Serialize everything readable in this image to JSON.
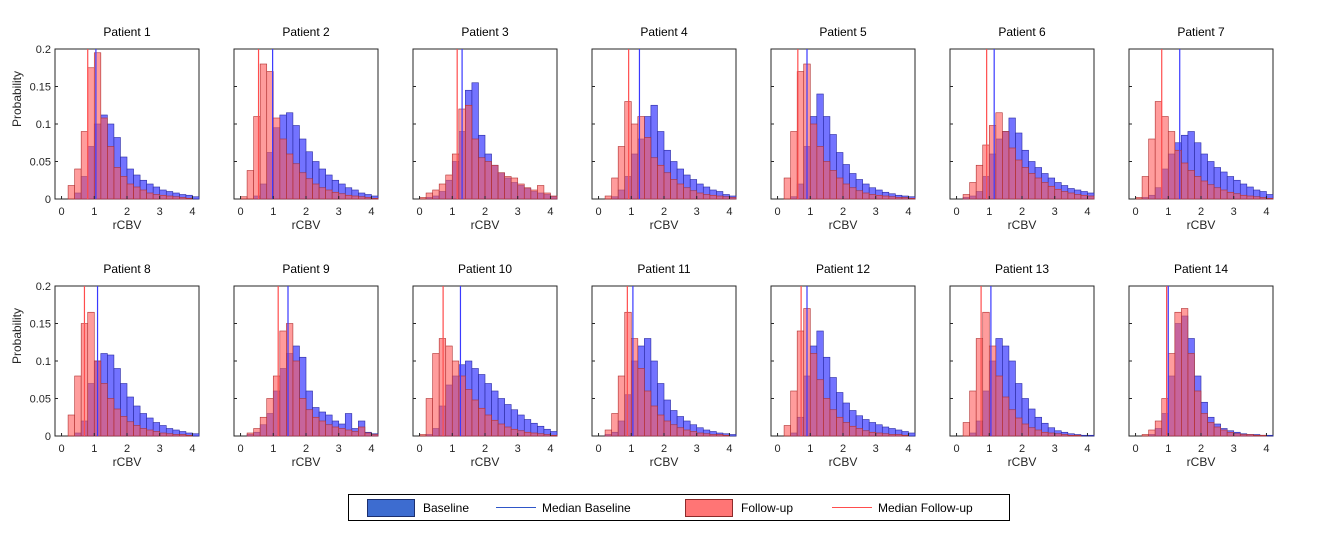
{
  "chart_data": {
    "type": "bar",
    "description": "Grid of 14 overlaid histograms of rCBV (baseline vs follow-up), one per patient",
    "xlabel": "rCBV",
    "ylabel": "Probability",
    "xlim": [
      -0.2,
      4.2
    ],
    "ylim": [
      0,
      0.2
    ],
    "xticks": [
      0,
      1,
      2,
      3,
      4
    ],
    "yticks": [
      0,
      0.05,
      0.1,
      0.15,
      0.2
    ],
    "ytick_labels": [
      "0",
      "0.05",
      "0.1",
      "0.15",
      "0.2"
    ],
    "bin_start": 0.0,
    "bin_width": 0.2,
    "colors": {
      "baseline_fill": "#5a5aff",
      "baseline_edge": "#2a2aa0",
      "baseline_median": "#3a3aff",
      "followup_fill": "#ff5a5a",
      "followup_edge": "#b03030",
      "followup_median": "#ff4d4d",
      "overlap_fill": "#c0245e"
    },
    "legend": [
      {
        "label": "Baseline",
        "kind": "patch",
        "color": "#3d6cd0"
      },
      {
        "label": "Median Baseline",
        "kind": "line",
        "color": "#2f56c8"
      },
      {
        "label": "Follow-up",
        "kind": "patch",
        "color": "#ff7575"
      },
      {
        "label": "Median Follow-up",
        "kind": "line",
        "color": "#ff4d4d"
      }
    ],
    "panels": [
      {
        "title": "Patient 1",
        "median_baseline": 1.05,
        "median_followup": 0.8,
        "baseline": [
          0.0,
          0.0,
          0.008,
          0.03,
          0.07,
          0.1,
          0.112,
          0.1,
          0.082,
          0.056,
          0.04,
          0.032,
          0.025,
          0.02,
          0.016,
          0.012,
          0.01,
          0.008,
          0.006,
          0.005,
          0.003
        ],
        "followup": [
          0.0,
          0.018,
          0.04,
          0.09,
          0.175,
          0.195,
          0.108,
          0.07,
          0.042,
          0.03,
          0.02,
          0.016,
          0.012,
          0.008,
          0.006,
          0.005,
          0.004,
          0.003,
          0.002,
          0.001,
          0.0
        ]
      },
      {
        "title": "Patient 2",
        "median_baseline": 0.98,
        "median_followup": 0.55,
        "baseline": [
          0.0,
          0.0,
          0.004,
          0.02,
          0.062,
          0.095,
          0.112,
          0.115,
          0.098,
          0.08,
          0.063,
          0.05,
          0.04,
          0.032,
          0.025,
          0.02,
          0.015,
          0.012,
          0.008,
          0.006,
          0.004
        ],
        "followup": [
          0.003,
          0.038,
          0.11,
          0.18,
          0.17,
          0.108,
          0.08,
          0.06,
          0.047,
          0.035,
          0.027,
          0.02,
          0.015,
          0.012,
          0.009,
          0.007,
          0.005,
          0.004,
          0.003,
          0.002,
          0.001
        ]
      },
      {
        "title": "Patient 3",
        "median_baseline": 1.3,
        "median_followup": 1.15,
        "baseline": [
          0.0,
          0.002,
          0.004,
          0.01,
          0.025,
          0.05,
          0.09,
          0.145,
          0.155,
          0.085,
          0.06,
          0.045,
          0.035,
          0.028,
          0.022,
          0.018,
          0.014,
          0.01,
          0.008,
          0.006,
          0.003
        ],
        "followup": [
          0.002,
          0.008,
          0.012,
          0.02,
          0.032,
          0.06,
          0.12,
          0.125,
          0.08,
          0.055,
          0.05,
          0.045,
          0.035,
          0.03,
          0.028,
          0.02,
          0.015,
          0.012,
          0.018,
          0.008,
          0.004
        ]
      },
      {
        "title": "Patient 4",
        "median_baseline": 1.25,
        "median_followup": 0.92,
        "baseline": [
          0.0,
          0.0,
          0.003,
          0.012,
          0.03,
          0.06,
          0.08,
          0.11,
          0.125,
          0.09,
          0.065,
          0.05,
          0.04,
          0.032,
          0.026,
          0.02,
          0.016,
          0.012,
          0.01,
          0.006,
          0.004
        ],
        "followup": [
          0.0,
          0.004,
          0.028,
          0.07,
          0.13,
          0.1,
          0.11,
          0.082,
          0.055,
          0.045,
          0.035,
          0.026,
          0.02,
          0.015,
          0.011,
          0.008,
          0.006,
          0.005,
          0.004,
          0.003,
          0.002
        ]
      },
      {
        "title": "Patient 5",
        "median_baseline": 0.9,
        "median_followup": 0.62,
        "baseline": [
          0.0,
          0.0,
          0.003,
          0.02,
          0.07,
          0.11,
          0.14,
          0.11,
          0.086,
          0.062,
          0.046,
          0.034,
          0.026,
          0.02,
          0.015,
          0.012,
          0.009,
          0.007,
          0.005,
          0.004,
          0.003
        ],
        "followup": [
          0.0,
          0.028,
          0.09,
          0.17,
          0.18,
          0.1,
          0.07,
          0.05,
          0.038,
          0.028,
          0.02,
          0.015,
          0.011,
          0.008,
          0.006,
          0.005,
          0.004,
          0.003,
          0.002,
          0.002,
          0.001
        ]
      },
      {
        "title": "Patient 6",
        "median_baseline": 1.15,
        "median_followup": 0.92,
        "baseline": [
          0.0,
          0.002,
          0.004,
          0.01,
          0.03,
          0.06,
          0.08,
          0.09,
          0.108,
          0.088,
          0.065,
          0.05,
          0.042,
          0.034,
          0.028,
          0.022,
          0.018,
          0.014,
          0.012,
          0.01,
          0.008
        ],
        "followup": [
          0.0,
          0.006,
          0.022,
          0.045,
          0.072,
          0.098,
          0.115,
          0.09,
          0.068,
          0.052,
          0.042,
          0.034,
          0.028,
          0.022,
          0.017,
          0.013,
          0.01,
          0.008,
          0.006,
          0.005,
          0.004
        ]
      },
      {
        "title": "Patient 7",
        "median_baseline": 1.35,
        "median_followup": 0.8,
        "baseline": [
          0.0,
          0.002,
          0.005,
          0.015,
          0.04,
          0.06,
          0.075,
          0.085,
          0.09,
          0.075,
          0.06,
          0.05,
          0.042,
          0.036,
          0.03,
          0.025,
          0.02,
          0.016,
          0.012,
          0.01,
          0.006
        ],
        "followup": [
          0.002,
          0.03,
          0.08,
          0.13,
          0.11,
          0.09,
          0.065,
          0.048,
          0.038,
          0.03,
          0.024,
          0.019,
          0.015,
          0.012,
          0.009,
          0.007,
          0.005,
          0.004,
          0.003,
          0.002,
          0.001
        ]
      },
      {
        "title": "Patient 8",
        "median_baseline": 1.1,
        "median_followup": 0.7,
        "baseline": [
          0.0,
          0.0,
          0.004,
          0.02,
          0.07,
          0.1,
          0.11,
          0.108,
          0.09,
          0.07,
          0.052,
          0.04,
          0.03,
          0.024,
          0.018,
          0.014,
          0.01,
          0.008,
          0.006,
          0.004,
          0.003
        ],
        "followup": [
          0.0,
          0.028,
          0.08,
          0.15,
          0.165,
          0.1,
          0.07,
          0.05,
          0.036,
          0.026,
          0.019,
          0.014,
          0.01,
          0.008,
          0.006,
          0.004,
          0.003,
          0.002,
          0.002,
          0.001,
          0.0
        ]
      },
      {
        "title": "Patient 9",
        "median_baseline": 1.45,
        "median_followup": 1.15,
        "baseline": [
          0.0,
          0.002,
          0.005,
          0.015,
          0.03,
          0.06,
          0.09,
          0.11,
          0.12,
          0.105,
          0.06,
          0.038,
          0.032,
          0.028,
          0.02,
          0.016,
          0.03,
          0.01,
          0.02,
          0.005,
          0.003
        ],
        "followup": [
          0.0,
          0.004,
          0.01,
          0.025,
          0.05,
          0.08,
          0.14,
          0.15,
          0.1,
          0.05,
          0.035,
          0.025,
          0.02,
          0.015,
          0.012,
          0.01,
          0.008,
          0.006,
          0.012,
          0.004,
          0.002
        ]
      },
      {
        "title": "Patient 10",
        "median_baseline": 1.25,
        "median_followup": 0.72,
        "baseline": [
          0.0,
          0.002,
          0.01,
          0.04,
          0.068,
          0.08,
          0.095,
          0.1,
          0.09,
          0.082,
          0.07,
          0.06,
          0.05,
          0.042,
          0.035,
          0.028,
          0.022,
          0.017,
          0.013,
          0.009,
          0.006
        ],
        "followup": [
          0.002,
          0.05,
          0.11,
          0.13,
          0.12,
          0.1,
          0.08,
          0.062,
          0.048,
          0.037,
          0.028,
          0.021,
          0.016,
          0.012,
          0.009,
          0.007,
          0.005,
          0.004,
          0.003,
          0.002,
          0.001
        ]
      },
      {
        "title": "Patient 11",
        "median_baseline": 1.05,
        "median_followup": 0.88,
        "baseline": [
          0.0,
          0.002,
          0.005,
          0.02,
          0.055,
          0.1,
          0.12,
          0.13,
          0.1,
          0.07,
          0.048,
          0.034,
          0.026,
          0.02,
          0.015,
          0.011,
          0.008,
          0.006,
          0.004,
          0.003,
          0.002
        ],
        "followup": [
          0.0,
          0.008,
          0.03,
          0.08,
          0.165,
          0.13,
          0.09,
          0.06,
          0.04,
          0.028,
          0.02,
          0.015,
          0.011,
          0.008,
          0.006,
          0.004,
          0.003,
          0.002,
          0.002,
          0.001,
          0.0
        ]
      },
      {
        "title": "Patient 12",
        "median_baseline": 0.9,
        "median_followup": 0.72,
        "baseline": [
          0.0,
          0.0,
          0.004,
          0.025,
          0.08,
          0.12,
          0.14,
          0.105,
          0.078,
          0.058,
          0.044,
          0.034,
          0.027,
          0.022,
          0.018,
          0.015,
          0.012,
          0.01,
          0.008,
          0.006,
          0.004
        ],
        "followup": [
          0.0,
          0.014,
          0.06,
          0.14,
          0.17,
          0.11,
          0.075,
          0.05,
          0.035,
          0.025,
          0.018,
          0.013,
          0.01,
          0.007,
          0.005,
          0.004,
          0.003,
          0.002,
          0.002,
          0.001,
          0.0
        ]
      },
      {
        "title": "Patient 13",
        "median_baseline": 1.05,
        "median_followup": 0.75,
        "baseline": [
          0.0,
          0.0,
          0.004,
          0.02,
          0.06,
          0.1,
          0.13,
          0.12,
          0.1,
          0.07,
          0.05,
          0.036,
          0.025,
          0.017,
          0.011,
          0.007,
          0.005,
          0.003,
          0.002,
          0.001,
          0.001
        ],
        "followup": [
          0.0,
          0.018,
          0.06,
          0.13,
          0.165,
          0.12,
          0.08,
          0.052,
          0.035,
          0.024,
          0.016,
          0.011,
          0.008,
          0.005,
          0.004,
          0.003,
          0.002,
          0.001,
          0.001,
          0.0,
          0.0
        ]
      },
      {
        "title": "Patient 14",
        "median_baseline": 1.0,
        "median_followup": 0.95,
        "baseline": [
          0.0,
          0.0,
          0.002,
          0.01,
          0.03,
          0.08,
          0.15,
          0.16,
          0.13,
          0.08,
          0.045,
          0.025,
          0.016,
          0.01,
          0.007,
          0.005,
          0.003,
          0.002,
          0.002,
          0.001,
          0.001
        ],
        "followup": [
          0.0,
          0.002,
          0.008,
          0.02,
          0.05,
          0.11,
          0.165,
          0.17,
          0.11,
          0.06,
          0.03,
          0.018,
          0.012,
          0.008,
          0.005,
          0.003,
          0.002,
          0.002,
          0.001,
          0.001,
          0.0
        ]
      }
    ]
  }
}
